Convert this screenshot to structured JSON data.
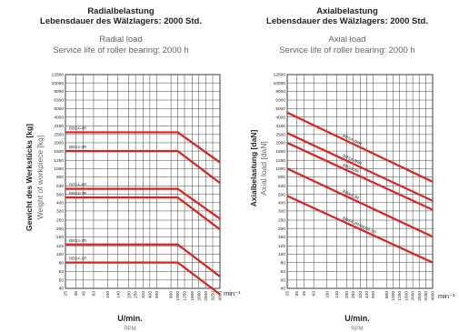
{
  "chart_data": [
    {
      "type": "line",
      "title": "Radialbelastung",
      "subtitle": "Lebensdauer des Wälzlagers: 2000 Std.",
      "title_en": "Radial load",
      "subtitle_en": "Service life of roller bearing: 2000 h",
      "xlabel": "U/min.",
      "xlabel_en": "RPM",
      "xunit": "min⁻¹",
      "ylabel": "Gewicht des Werkstücks [kg]",
      "ylabel_en": "Weight of workpiece [kg]",
      "x_scale": "log",
      "y_scale": "log",
      "grid": true,
      "xticks": [
        "25",
        "35",
        "45",
        "63",
        "100",
        "140",
        "200",
        "250",
        "320",
        "400",
        "500",
        "800",
        "1000",
        "1250",
        "1600",
        "2000",
        "2500",
        "3150",
        "4000"
      ],
      "yticks": [
        "12500",
        "10000",
        "8000",
        "6300",
        "5000",
        "4000",
        "3150",
        "2500",
        "2000",
        "1600",
        "1250",
        "1000",
        "800",
        "630",
        "500",
        "400",
        "320",
        "250",
        "200",
        "160",
        "125",
        "100",
        "80",
        "63",
        "50",
        "40"
      ],
      "series": [
        {
          "name": "BBS4-4R",
          "color": "#e0201b",
          "x": [
            25,
            1000,
            4000
          ],
          "y": [
            2650,
            2650,
            1180
          ]
        },
        {
          "name": "BBS4-3R",
          "color": "#e0201b",
          "x": [
            25,
            1000,
            4000
          ],
          "y": [
            1600,
            1600,
            680
          ]
        },
        {
          "name": "BBS4-4R",
          "color": "#e0201b",
          "x": [
            25,
            1000,
            4000
          ],
          "y": [
            580,
            580,
            260
          ]
        },
        {
          "name": "BBS4-3R",
          "color": "#e0201b",
          "x": [
            25,
            1000,
            4000
          ],
          "y": [
            460,
            460,
            195
          ]
        },
        {
          "name": "BBS4-2R",
          "color": "#e0201b",
          "x": [
            25,
            1000,
            4000
          ],
          "y": [
            130,
            130,
            55
          ]
        },
        {
          "name": "BBS4-1R",
          "color": "#e0201b",
          "x": [
            25,
            1000,
            4000
          ],
          "y": [
            80,
            80,
            34
          ]
        }
      ]
    },
    {
      "type": "line",
      "title": "Axialbelastung",
      "subtitle": "Lebensdauer des Wälzlagers: 2000 Std.",
      "title_en": "Axial load",
      "subtitle_en": "Service life of roller bearing: 2000 h",
      "xlabel": "U/min.",
      "xlabel_en": "RPM",
      "xunit": "min⁻¹",
      "ylabel": "Axialbelastung [daN]",
      "ylabel_en": "Axial load [daN]",
      "x_scale": "log",
      "y_scale": "log",
      "grid": true,
      "xticks": [
        "25",
        "35",
        "45",
        "63",
        "100",
        "140",
        "200",
        "250",
        "320",
        "400",
        "500",
        "800",
        "1000",
        "1250",
        "1600",
        "2000",
        "2500",
        "3150",
        "4000"
      ],
      "yticks": [
        "12500",
        "10000",
        "8000",
        "6300",
        "5000",
        "4000",
        "3150",
        "2500",
        "2000",
        "1600",
        "1250",
        "1000",
        "800",
        "630",
        "500",
        "400",
        "320",
        "250",
        "200",
        "160",
        "125",
        "100",
        "80",
        "63",
        "50",
        "40"
      ],
      "series": [
        {
          "name": "BBS4-4RR",
          "color": "#e0201b",
          "x": [
            25,
            4000
          ],
          "y": [
            4500,
            700
          ]
        },
        {
          "name": "BBS4-3RR",
          "color": "#e0201b",
          "x": [
            25,
            4000
          ],
          "y": [
            2600,
            420
          ]
        },
        {
          "name": "BBS4-4R",
          "color": "#e0201b",
          "x": [
            25,
            4000
          ],
          "y": [
            2000,
            330
          ]
        },
        {
          "name": "BBS4-3R",
          "color": "#e0201b",
          "x": [
            25,
            4000
          ],
          "y": [
            1000,
            160
          ]
        },
        {
          "name": "BBS4-2R/BBS4-1R",
          "color": "#e0201b",
          "x": [
            25,
            4000
          ],
          "y": [
            480,
            80
          ]
        }
      ]
    }
  ]
}
